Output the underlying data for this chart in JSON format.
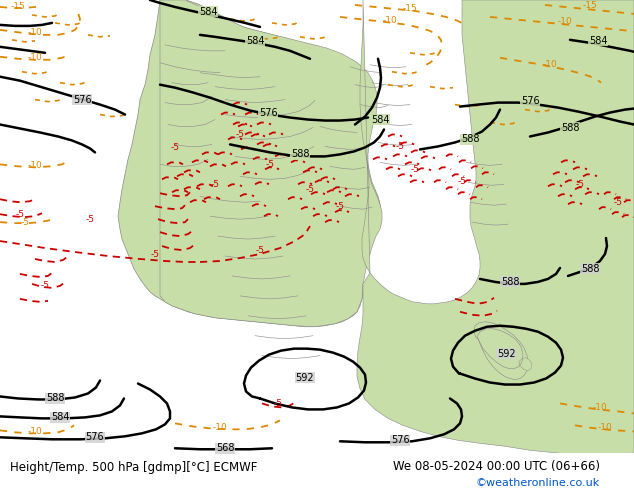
{
  "title_left": "Height/Temp. 500 hPa [gdmp][°C] ECMWF",
  "title_right": "We 08-05-2024 00:00 UTC (06+66)",
  "credit": "©weatheronline.co.uk",
  "fig_width": 6.34,
  "fig_height": 4.9,
  "dpi": 100,
  "ocean_color": "#d0d2d0",
  "land_green_color": "#c8dea8",
  "contour_black_color": "#000000",
  "contour_orange_color": "#dd8800",
  "contour_red_color": "#cc0000",
  "text_color": "#000000",
  "credit_color": "#0055cc",
  "bottom_bar_color": "#e8e8e8",
  "font_size_title": 8.5,
  "font_size_credit": 8
}
